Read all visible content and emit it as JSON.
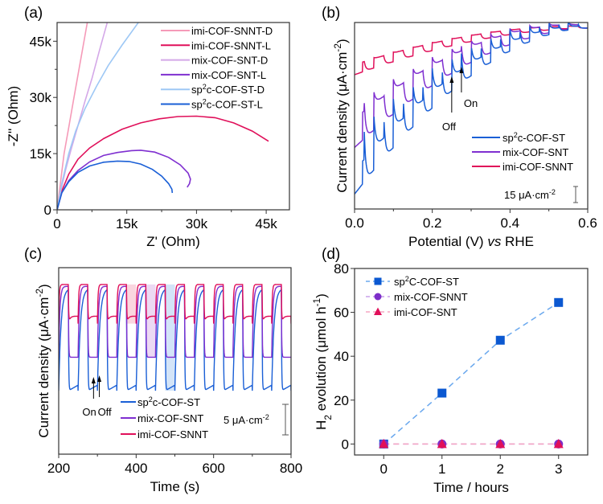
{
  "chart_data": [
    {
      "id": "a",
      "type": "line",
      "panel_label": "(a)",
      "title": "",
      "xlabel": "Z' (Ohm)",
      "ylabel": "-Z'' (Ohm)",
      "xlim": [
        0,
        50000
      ],
      "ylim": [
        0,
        50000
      ],
      "xticks": [
        0,
        15000,
        30000,
        45000
      ],
      "xtick_labels": [
        "0",
        "15k",
        "30k",
        "45k"
      ],
      "yticks": [
        0,
        15000,
        30000,
        45000
      ],
      "ytick_labels": [
        "0",
        "15k",
        "30k",
        "45k"
      ],
      "legend_position": "top-right",
      "series": [
        {
          "name": "imi-COF-SNNT-D",
          "color": "#f59ab8",
          "x": [
            0,
            500,
            1000,
            1500,
            2500,
            3500,
            4500,
            5500,
            6500
          ],
          "y": [
            0,
            5000,
            10000,
            15000,
            22000,
            29000,
            36000,
            43000,
            50000
          ]
        },
        {
          "name": "imi-COF-SNNT-L",
          "color": "#e0105a",
          "x": [
            0,
            1000,
            2500,
            4500,
            7000,
            10000,
            14000,
            18000,
            22000,
            26000,
            30000,
            34000,
            38000,
            42000,
            45500
          ],
          "y": [
            0,
            5000,
            9500,
            13500,
            16500,
            19000,
            21500,
            23200,
            24300,
            24900,
            25000,
            24600,
            23200,
            21000,
            18300
          ]
        },
        {
          "name": "mix-COF-SNT-D",
          "color": "#d4a8e8",
          "x": [
            0,
            800,
            1800,
            3000,
            4500,
            6000,
            7500,
            9000,
            10800
          ],
          "y": [
            0,
            5000,
            10500,
            16000,
            22500,
            29000,
            35000,
            42000,
            50000
          ]
        },
        {
          "name": "mix-COF-SNT-L",
          "color": "#7f2fd0",
          "x": [
            0,
            1000,
            2500,
            4500,
            7000,
            10000,
            13000,
            16000,
            18000,
            21000,
            24000,
            26500,
            28200,
            28700,
            28500,
            28000
          ],
          "y": [
            0,
            4500,
            7800,
            10500,
            12800,
            14500,
            15300,
            15800,
            15900,
            15400,
            14000,
            12000,
            9800,
            8200,
            7000,
            6000
          ]
        },
        {
          "name": "sp2c-COF-ST-D",
          "color": "#9ec8f5",
          "x": [
            0,
            1000,
            2500,
            4000,
            6000,
            8500,
            11000,
            14000,
            17500
          ],
          "y": [
            0,
            7000,
            15000,
            21000,
            27000,
            33000,
            38500,
            44000,
            50000
          ]
        },
        {
          "name": "sp2c-COF-ST-L",
          "color": "#1a5fd6",
          "x": [
            0,
            1000,
            2500,
            4500,
            7000,
            10000,
            13000,
            15500,
            18000,
            20500,
            22500,
            24000,
            24700,
            24800
          ],
          "y": [
            0,
            4500,
            7500,
            10000,
            11700,
            12700,
            13000,
            12900,
            12200,
            10800,
            9000,
            7000,
            5500,
            4500
          ]
        }
      ]
    },
    {
      "id": "b",
      "type": "line",
      "panel_label": "(b)",
      "xlabel_parts": [
        "Potential (V) ",
        "vs",
        " RHE"
      ],
      "ylabel": "Current density (μA·cm⁻²)",
      "xlim": [
        0.0,
        0.6
      ],
      "ylim_relative": [
        0,
        100
      ],
      "xticks": [
        0.0,
        0.2,
        0.4,
        0.6
      ],
      "xtick_labels": [
        "0.0",
        "0.2",
        "0.4",
        "0.6"
      ],
      "yticks_shown": false,
      "chopping_period_V": 0.05,
      "light_on_fraction": 0.5,
      "scale_bar": {
        "label_main": "15 μA·cm",
        "label_sup": "-2",
        "value_uA_cm2": 15
      },
      "annotations": {
        "off": "Off",
        "on": "On",
        "off_x_V": 0.25,
        "on_x_V": 0.275
      },
      "legend_position": "lower-right",
      "series": [
        {
          "name": "sp2c-COF-ST",
          "label_parts": [
            "sp",
            "2",
            "c-COF-ST"
          ],
          "color": "#1a5fd6",
          "dark_start": 8,
          "dark_end": 97,
          "light_jump_start": 31,
          "light_jump_end": 2,
          "decay": 0.6
        },
        {
          "name": "mix-COF-SNT",
          "label_parts": [
            "mix-COF-SNT",
            "",
            ""
          ],
          "color": "#7f2fd0",
          "dark_start": 33,
          "dark_end": 97,
          "light_jump_start": 22,
          "light_jump_end": 2,
          "decay": 0.3
        },
        {
          "name": "imi-COF-SNNT",
          "label_parts": [
            "imi-COF-SNNT",
            "",
            ""
          ],
          "color": "#e0105a",
          "dark_start": 72,
          "dark_end": 97,
          "light_jump_start": 6,
          "light_jump_end": 1,
          "decay": 0.1
        }
      ]
    },
    {
      "id": "c",
      "type": "line",
      "panel_label": "(c)",
      "xlabel": "Time (s)",
      "ylabel": "Current density (μA·cm⁻²)",
      "xlim": [
        200,
        800
      ],
      "ylim_relative": [
        0,
        100
      ],
      "xticks": [
        200,
        400,
        600,
        800
      ],
      "xtick_labels": [
        "200",
        "400",
        "600",
        "800"
      ],
      "yticks_shown": false,
      "chopping_period_s": 50,
      "light_on_s": 25,
      "first_on_s": 200,
      "scale_bar": {
        "label_main": "5 μA·cm",
        "label_sup": "-2",
        "value_uA_cm2": 5
      },
      "annotations": {
        "on": "On",
        "off": "Off",
        "on_x_s": 290,
        "off_x_s": 305
      },
      "highlight_regions": [
        {
          "series": "imi-COF-SNNT",
          "x_range_s": [
            375,
            400
          ],
          "color": "#f8c8d4"
        },
        {
          "series": "mix-COF-SNT",
          "x_range_s": [
            425,
            450
          ],
          "color": "#e6ccef"
        },
        {
          "series": "sp2c-COF-ST",
          "x_range_s": [
            475,
            500
          ],
          "color": "#c4dbf6"
        }
      ],
      "legend_position": "lower-center",
      "series": [
        {
          "name": "sp2c-COF-ST",
          "label_parts": [
            "sp",
            "2",
            "c-COF-ST"
          ],
          "color": "#1a5fd6",
          "on_level": 89,
          "off_level": 34
        },
        {
          "name": "mix-COF-SNT",
          "label_parts": [
            "mix-COF-SNT",
            "",
            ""
          ],
          "color": "#7f2fd0",
          "on_level": 90,
          "off_level": 52
        },
        {
          "name": "imi-COF-SNNT",
          "label_parts": [
            "imi-COF-SNNT",
            "",
            ""
          ],
          "color": "#e0105a",
          "on_level": 91,
          "off_level": 70
        }
      ]
    },
    {
      "id": "d",
      "type": "line",
      "panel_label": "(d)",
      "xlabel": "Time / hours",
      "ylabel_parts": [
        "H",
        "2",
        " evolution (μmol h",
        "-1",
        ")"
      ],
      "xlim": [
        -0.5,
        3.5
      ],
      "ylim": [
        -5,
        80
      ],
      "xticks": [
        0,
        1,
        2,
        3
      ],
      "xtick_labels": [
        "0",
        "1",
        "2",
        "3"
      ],
      "yticks": [
        0,
        20,
        40,
        60,
        80
      ],
      "ytick_labels": [
        "0",
        "20",
        "40",
        "60",
        "80"
      ],
      "legend_position": "top-left",
      "x": [
        0,
        1,
        2,
        3
      ],
      "series": [
        {
          "name": "sp2C-COF-ST",
          "label_parts": [
            "sp",
            "2",
            "C-COF-ST"
          ],
          "marker": "square",
          "color": "#0b58d1",
          "line_color": "#6aa8ee",
          "values": [
            0,
            23.2,
            47.3,
            64.5
          ]
        },
        {
          "name": "mix-COF-SNNT",
          "label_parts": [
            "mix-COF-SNNT",
            "",
            ""
          ],
          "marker": "circle",
          "color": "#7d2fc9",
          "line_color": "#c8a0ea",
          "values": [
            0,
            0,
            0,
            0
          ]
        },
        {
          "name": "imi-COF-SNT",
          "label_parts": [
            "imi-COF-SNT",
            "",
            ""
          ],
          "marker": "triangle",
          "color": "#e0105a",
          "line_color": "#f5a5c2",
          "values": [
            0,
            0,
            0,
            0
          ]
        }
      ]
    }
  ]
}
